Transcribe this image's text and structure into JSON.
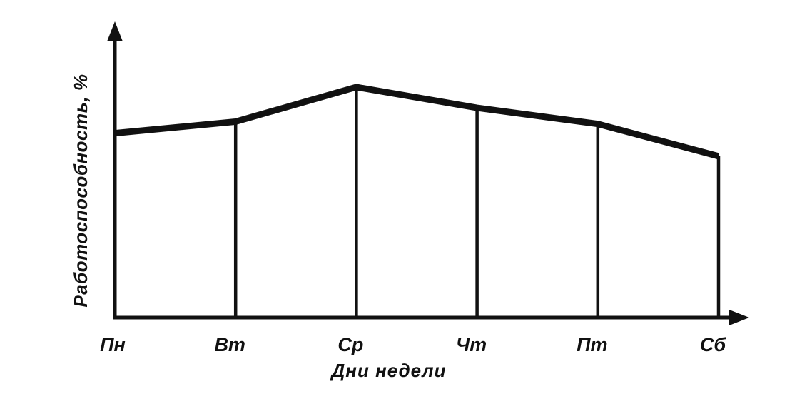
{
  "chart_data": {
    "type": "line",
    "title": "",
    "categories": [
      "Пн",
      "Вт",
      "Ср",
      "Чт",
      "Пт",
      "Сб"
    ],
    "values": [
      80,
      85,
      100,
      91,
      84,
      70
    ],
    "xlabel": "Дни недели",
    "ylabel": "Работоспособность, %",
    "ylim": [
      0,
      128
    ],
    "y_tick_labels": [],
    "grid": false,
    "legend": false,
    "drop_lines": true,
    "line_color": "#111111",
    "background": "#ffffff"
  }
}
